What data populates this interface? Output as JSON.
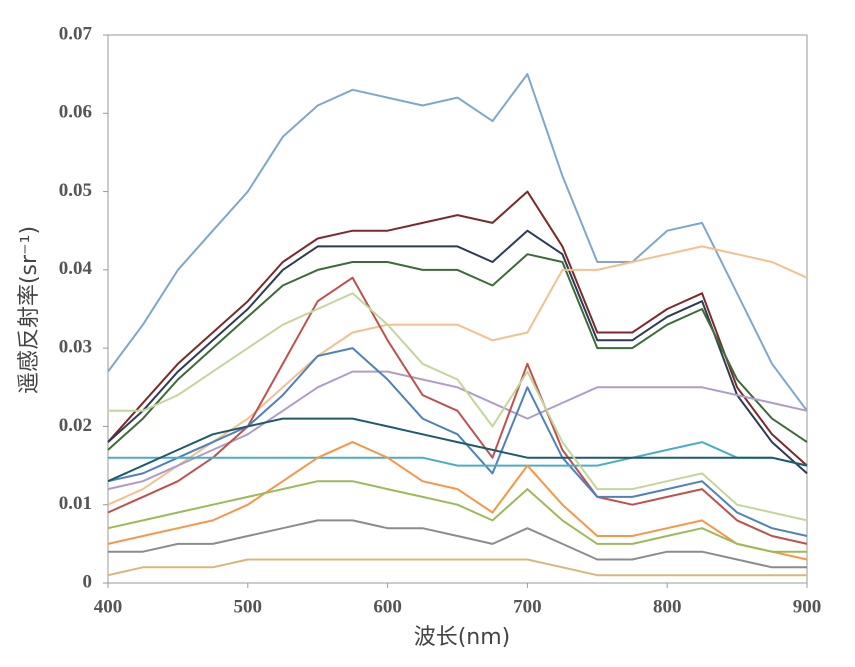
{
  "chart_data": {
    "type": "line",
    "x_label": "波长(nm)",
    "y_label": "遥感反射率(sr⁻¹)",
    "x": [
      400,
      425,
      450,
      475,
      500,
      525,
      550,
      575,
      600,
      625,
      650,
      675,
      700,
      725,
      750,
      775,
      800,
      825,
      850,
      875,
      900
    ],
    "xlim": [
      400,
      900
    ],
    "xticks": [
      400,
      500,
      600,
      700,
      800,
      900
    ],
    "ylim": [
      0,
      0.07
    ],
    "yticks": [
      0,
      0.01,
      0.02,
      0.03,
      0.04,
      0.05,
      0.06,
      0.07
    ],
    "grid": false,
    "series": [
      {
        "color": "#7fa7cc",
        "values": [
          0.027,
          0.033,
          0.04,
          0.045,
          0.05,
          0.057,
          0.061,
          0.063,
          0.062,
          0.061,
          0.062,
          0.059,
          0.065,
          0.052,
          0.041,
          0.041,
          0.045,
          0.046,
          0.037,
          0.028,
          0.022
        ]
      },
      {
        "color": "#7b2a2a",
        "values": [
          0.018,
          0.023,
          0.028,
          0.032,
          0.036,
          0.041,
          0.044,
          0.045,
          0.045,
          0.046,
          0.047,
          0.046,
          0.05,
          0.043,
          0.032,
          0.032,
          0.035,
          0.037,
          0.025,
          0.019,
          0.015
        ]
      },
      {
        "color": "#2e3b55",
        "values": [
          0.018,
          0.022,
          0.027,
          0.031,
          0.035,
          0.04,
          0.043,
          0.043,
          0.043,
          0.043,
          0.043,
          0.041,
          0.045,
          0.042,
          0.031,
          0.031,
          0.034,
          0.036,
          0.024,
          0.018,
          0.014
        ]
      },
      {
        "color": "#3e6b3a",
        "values": [
          0.017,
          0.021,
          0.026,
          0.03,
          0.034,
          0.038,
          0.04,
          0.041,
          0.041,
          0.04,
          0.04,
          0.038,
          0.042,
          0.041,
          0.03,
          0.03,
          0.033,
          0.035,
          0.026,
          0.021,
          0.018
        ]
      },
      {
        "color": "#f4c08e",
        "values": [
          0.01,
          0.012,
          0.015,
          0.018,
          0.021,
          0.025,
          0.029,
          0.032,
          0.033,
          0.033,
          0.033,
          0.031,
          0.032,
          0.04,
          0.04,
          0.041,
          0.042,
          0.043,
          0.042,
          0.041,
          0.039
        ]
      },
      {
        "color": "#b09cc8",
        "values": [
          0.012,
          0.013,
          0.015,
          0.017,
          0.019,
          0.022,
          0.025,
          0.027,
          0.027,
          0.026,
          0.025,
          0.023,
          0.021,
          0.023,
          0.025,
          0.025,
          0.025,
          0.025,
          0.024,
          0.023,
          0.022
        ]
      },
      {
        "color": "#c0504d",
        "values": [
          0.009,
          0.011,
          0.013,
          0.016,
          0.02,
          0.028,
          0.036,
          0.039,
          0.031,
          0.024,
          0.022,
          0.016,
          0.028,
          0.017,
          0.011,
          0.01,
          0.011,
          0.012,
          0.008,
          0.006,
          0.005
        ]
      },
      {
        "color": "#4f81bd",
        "values": [
          0.013,
          0.014,
          0.016,
          0.018,
          0.02,
          0.024,
          0.029,
          0.03,
          0.026,
          0.021,
          0.019,
          0.014,
          0.025,
          0.016,
          0.011,
          0.011,
          0.012,
          0.013,
          0.009,
          0.007,
          0.006
        ]
      },
      {
        "color": "#4bacc6",
        "values": [
          0.016,
          0.016,
          0.016,
          0.016,
          0.016,
          0.016,
          0.016,
          0.016,
          0.016,
          0.016,
          0.015,
          0.015,
          0.015,
          0.015,
          0.015,
          0.016,
          0.017,
          0.018,
          0.016,
          0.016,
          0.015
        ]
      },
      {
        "color": "#f79646",
        "values": [
          0.005,
          0.006,
          0.007,
          0.008,
          0.01,
          0.013,
          0.016,
          0.018,
          0.016,
          0.013,
          0.012,
          0.009,
          0.015,
          0.01,
          0.006,
          0.006,
          0.007,
          0.008,
          0.005,
          0.004,
          0.003
        ]
      },
      {
        "color": "#9bbb59",
        "values": [
          0.007,
          0.008,
          0.009,
          0.01,
          0.011,
          0.012,
          0.013,
          0.013,
          0.012,
          0.011,
          0.01,
          0.008,
          0.012,
          0.008,
          0.005,
          0.005,
          0.006,
          0.007,
          0.005,
          0.004,
          0.004
        ]
      },
      {
        "color": "#8c8c8c",
        "values": [
          0.004,
          0.004,
          0.005,
          0.005,
          0.006,
          0.007,
          0.008,
          0.008,
          0.007,
          0.007,
          0.006,
          0.005,
          0.007,
          0.005,
          0.003,
          0.003,
          0.004,
          0.004,
          0.003,
          0.002,
          0.002
        ]
      },
      {
        "color": "#d9b77a",
        "values": [
          0.001,
          0.002,
          0.002,
          0.002,
          0.003,
          0.003,
          0.003,
          0.003,
          0.003,
          0.003,
          0.003,
          0.003,
          0.003,
          0.002,
          0.001,
          0.001,
          0.001,
          0.001,
          0.001,
          0.001,
          0.001
        ]
      },
      {
        "color": "#1f5c6b",
        "values": [
          0.013,
          0.015,
          0.017,
          0.019,
          0.02,
          0.021,
          0.021,
          0.021,
          0.02,
          0.019,
          0.018,
          0.017,
          0.016,
          0.016,
          0.016,
          0.016,
          0.016,
          0.016,
          0.016,
          0.016,
          0.015
        ]
      },
      {
        "color": "#c3d69b",
        "values": [
          0.022,
          0.022,
          0.024,
          0.027,
          0.03,
          0.033,
          0.035,
          0.037,
          0.033,
          0.028,
          0.026,
          0.02,
          0.027,
          0.018,
          0.012,
          0.012,
          0.013,
          0.014,
          0.01,
          0.009,
          0.008
        ]
      }
    ]
  }
}
